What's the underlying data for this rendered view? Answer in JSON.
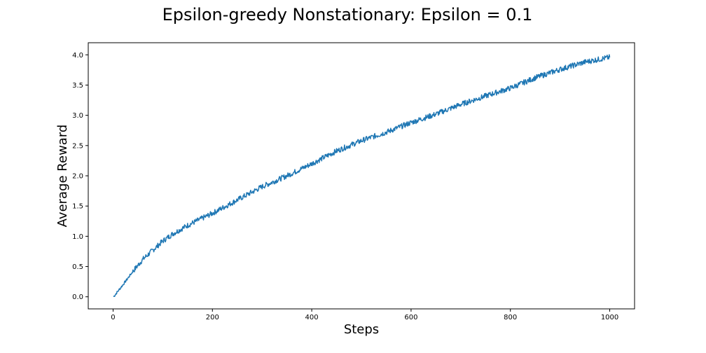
{
  "chart_data": {
    "type": "line",
    "title": "Epsilon-greedy Nonstationary: Epsilon = 0.1",
    "xlabel": "Steps",
    "ylabel": "Average Reward",
    "xlim": [
      -50,
      1050
    ],
    "ylim": [
      -0.2,
      4.2
    ],
    "xticks": [
      0,
      200,
      400,
      600,
      800,
      1000
    ],
    "xtick_labels": [
      "0",
      "200",
      "400",
      "600",
      "800",
      "1000"
    ],
    "yticks": [
      0.0,
      0.5,
      1.0,
      1.5,
      2.0,
      2.5,
      3.0,
      3.5,
      4.0
    ],
    "ytick_labels": [
      "0.0",
      "0.5",
      "1.0",
      "1.5",
      "2.0",
      "2.5",
      "3.0",
      "3.5",
      "4.0"
    ],
    "grid": false,
    "legend": "none",
    "series": [
      {
        "color": "#1f77b4",
        "x": [
          1,
          20,
          40,
          60,
          80,
          100,
          120,
          150,
          200,
          250,
          300,
          350,
          400,
          450,
          500,
          550,
          600,
          650,
          700,
          750,
          800,
          850,
          900,
          950,
          1000
        ],
        "values": [
          0.0,
          0.2,
          0.42,
          0.62,
          0.77,
          0.92,
          1.04,
          1.18,
          1.38,
          1.6,
          1.82,
          2.0,
          2.2,
          2.41,
          2.58,
          2.72,
          2.88,
          3.02,
          3.18,
          3.32,
          3.45,
          3.62,
          3.76,
          3.88,
          3.96
        ]
      }
    ]
  }
}
